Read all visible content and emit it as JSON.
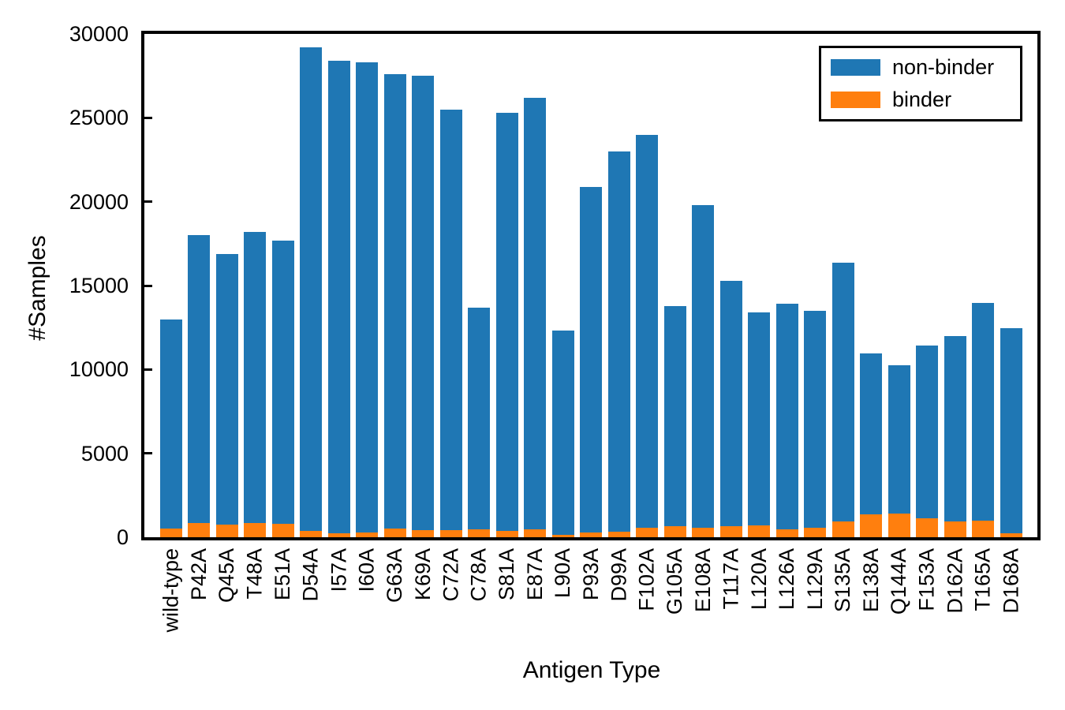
{
  "figure": {
    "background_color": "#ffffff",
    "text_color": "#000000"
  },
  "axes": {
    "ylabel": "#Samples",
    "xlabel": "Antigen Type",
    "ytick_labels": [
      "0",
      "5000",
      "10000",
      "15000",
      "20000",
      "25000",
      "30000"
    ]
  },
  "legend": {
    "items": [
      {
        "label": "non-binder",
        "color": "#1f77b4"
      },
      {
        "label": "binder",
        "color": "#ff7f0e"
      }
    ]
  },
  "chart_data": {
    "type": "bar",
    "stacked": true,
    "title": "",
    "xlabel": "Antigen Type",
    "ylabel": "#Samples",
    "ylim": [
      0,
      30000
    ],
    "yticks": [
      0,
      5000,
      10000,
      15000,
      20000,
      25000,
      30000
    ],
    "grid": false,
    "legend_position": "upper right",
    "bar_colors": {
      "non-binder": "#1f77b4",
      "binder": "#ff7f0e"
    },
    "categories": [
      "wild-type",
      "P42A",
      "Q45A",
      "T48A",
      "E51A",
      "D54A",
      "I57A",
      "I60A",
      "G63A",
      "K69A",
      "C72A",
      "C78A",
      "S81A",
      "E87A",
      "L90A",
      "P93A",
      "D99A",
      "F102A",
      "G105A",
      "E108A",
      "T117A",
      "L120A",
      "L126A",
      "L129A",
      "S135A",
      "E138A",
      "Q144A",
      "F153A",
      "D162A",
      "T165A",
      "D168A"
    ],
    "series": [
      {
        "name": "non-binder",
        "color": "#1f77b4",
        "values": [
          12500,
          17150,
          16150,
          17350,
          16900,
          28800,
          28150,
          28020,
          27100,
          27080,
          25070,
          13220,
          24920,
          25720,
          12140,
          20620,
          22670,
          23450,
          13120,
          19250,
          14650,
          12700,
          13450,
          12940,
          15400,
          9570,
          8850,
          10330,
          11050,
          12970,
          12220
        ]
      },
      {
        "name": "binder",
        "color": "#ff7f0e",
        "values": [
          500,
          850,
          750,
          850,
          800,
          400,
          250,
          280,
          500,
          420,
          430,
          480,
          380,
          480,
          160,
          280,
          330,
          550,
          680,
          550,
          650,
          700,
          450,
          560,
          950,
          1380,
          1400,
          1120,
          950,
          980,
          230
        ]
      }
    ]
  }
}
